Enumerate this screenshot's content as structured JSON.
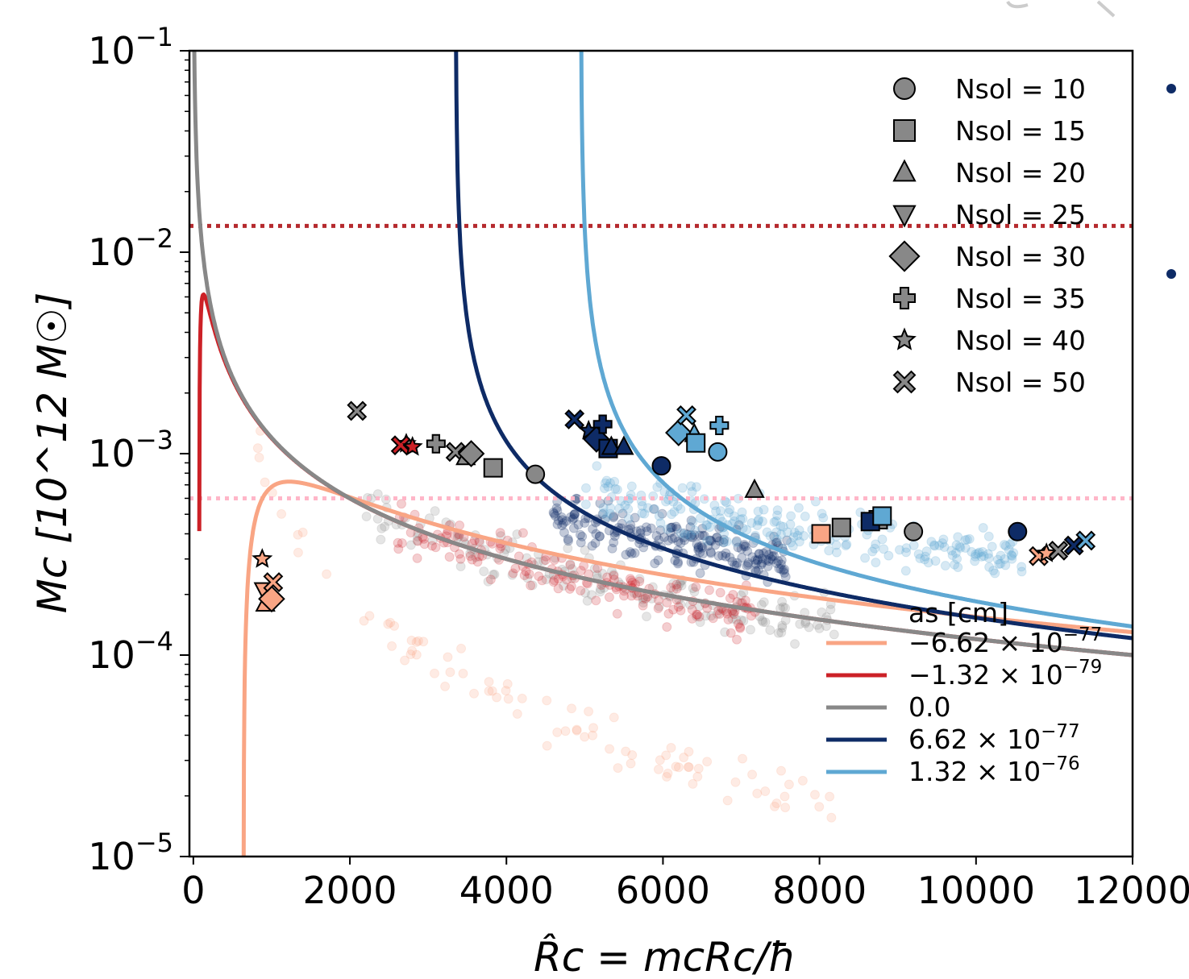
{
  "chart_data": {
    "type": "scatter",
    "x_axis": {
      "label": "R̂c = mcRc/ħ",
      "lim": [
        -50,
        12000
      ],
      "ticks": [
        0,
        2000,
        4000,
        6000,
        8000,
        10000,
        12000
      ],
      "tick_labels": [
        "0",
        "2000",
        "4000",
        "6000",
        "8000",
        "10000",
        "12000"
      ]
    },
    "y_axis": {
      "label": "Mc [10^12 M☉]",
      "scale": "log",
      "lim": [
        1e-05,
        0.1
      ],
      "ticks": [
        1e-05,
        0.0001,
        0.001,
        0.01,
        0.1
      ],
      "tick_labels": [
        {
          "base": "10",
          "exp": "−5"
        },
        {
          "base": "10",
          "exp": "−4"
        },
        {
          "base": "10",
          "exp": "−3"
        },
        {
          "base": "10",
          "exp": "−2"
        },
        {
          "base": "10",
          "exp": "−1"
        }
      ]
    },
    "hlines": [
      {
        "y": 0.0135,
        "color": "#b52a2e",
        "style": "dotted"
      },
      {
        "y": 0.0006,
        "color": "#ffb6c8",
        "style": "dotted"
      }
    ],
    "curves_legend_title": "as [cm]",
    "curves": [
      {
        "label_mantissa": "−6.62 × 10",
        "label_exp": "−77",
        "color": "#f9a584",
        "A": 1.2,
        "B": 0.5,
        "C": -0.00094
      },
      {
        "label_mantissa": "−1.32 × 10",
        "label_exp": "−79",
        "color": "#cc2127",
        "A": 1.2,
        "B": 0.5,
        "C": -1.88e-05
      },
      {
        "label_mantissa": "0.0",
        "label_exp": "",
        "color": "#888888",
        "A": 1.2,
        "B": 0.5,
        "C": 0
      },
      {
        "label_mantissa": "6.62 × 10",
        "label_exp": "−77",
        "color": "#0e2b66",
        "A": 1.2,
        "B": 0.5,
        "C": 0.00094
      },
      {
        "label_mantissa": "1.32 × 10",
        "label_exp": "−76",
        "color": "#5fa8d3",
        "A": 1.2,
        "B": 0.5,
        "C": 0.00187
      }
    ],
    "marker_legend": [
      {
        "label": "Nsol = 10",
        "marker": "circle"
      },
      {
        "label": "Nsol = 15",
        "marker": "square"
      },
      {
        "label": "Nsol = 20",
        "marker": "triangle-up"
      },
      {
        "label": "Nsol = 25",
        "marker": "triangle-down"
      },
      {
        "label": "Nsol = 30",
        "marker": "diamond"
      },
      {
        "label": "Nsol = 35",
        "marker": "plus"
      },
      {
        "label": "Nsol = 40",
        "marker": "star"
      },
      {
        "label": "Nsol = 50",
        "marker": "x"
      }
    ],
    "points": [
      {
        "x": 2090,
        "y": 0.00163,
        "m": "x",
        "c": "#888888"
      },
      {
        "x": 2720,
        "y": 0.00112,
        "m": "star",
        "c": "#888888"
      },
      {
        "x": 3100,
        "y": 0.00112,
        "m": "plus",
        "c": "#888888"
      },
      {
        "x": 3350,
        "y": 0.00102,
        "m": "x",
        "c": "#888888"
      },
      {
        "x": 3480,
        "y": 0.00096,
        "m": "triangle-up",
        "c": "#888888"
      },
      {
        "x": 3550,
        "y": 0.001,
        "m": "diamond",
        "c": "#888888"
      },
      {
        "x": 3830,
        "y": 0.00085,
        "m": "square",
        "c": "#888888"
      },
      {
        "x": 4370,
        "y": 0.00079,
        "m": "circle",
        "c": "#888888"
      },
      {
        "x": 7170,
        "y": 0.00066,
        "m": "triangle-up",
        "c": "#888888"
      },
      {
        "x": 8280,
        "y": 0.00043,
        "m": "square",
        "c": "#888888"
      },
      {
        "x": 8750,
        "y": 0.00047,
        "m": "square",
        "c": "#888888"
      },
      {
        "x": 9200,
        "y": 0.00041,
        "m": "circle",
        "c": "#888888"
      },
      {
        "x": 2650,
        "y": 0.0011,
        "m": "x",
        "c": "#cc2127"
      },
      {
        "x": 2800,
        "y": 0.00108,
        "m": "star",
        "c": "#cc2127"
      },
      {
        "x": 4870,
        "y": 0.00148,
        "m": "x",
        "c": "#0e2b66"
      },
      {
        "x": 5050,
        "y": 0.0013,
        "m": "star",
        "c": "#0e2b66"
      },
      {
        "x": 5150,
        "y": 0.00118,
        "m": "diamond",
        "c": "#0e2b66"
      },
      {
        "x": 5230,
        "y": 0.0014,
        "m": "plus",
        "c": "#0e2b66"
      },
      {
        "x": 5300,
        "y": 0.00106,
        "m": "square",
        "c": "#0e2b66"
      },
      {
        "x": 5340,
        "y": 0.00108,
        "m": "triangle-up",
        "c": "#0e2b66"
      },
      {
        "x": 5500,
        "y": 0.00108,
        "m": "triangle-up",
        "c": "#0e2b66"
      },
      {
        "x": 5980,
        "y": 0.00087,
        "m": "circle",
        "c": "#0e2b66"
      },
      {
        "x": 10530,
        "y": 0.00041,
        "m": "circle",
        "c": "#0e2b66"
      },
      {
        "x": 8650,
        "y": 0.00046,
        "m": "square",
        "c": "#0e2b66"
      },
      {
        "x": 6200,
        "y": 0.00127,
        "m": "diamond",
        "c": "#5fa8d3"
      },
      {
        "x": 6300,
        "y": 0.00155,
        "m": "x",
        "c": "#5fa8d3"
      },
      {
        "x": 6400,
        "y": 0.00125,
        "m": "triangle-up",
        "c": "#5fa8d3"
      },
      {
        "x": 6420,
        "y": 0.00113,
        "m": "square",
        "c": "#5fa8d3"
      },
      {
        "x": 6720,
        "y": 0.00138,
        "m": "plus",
        "c": "#5fa8d3"
      },
      {
        "x": 6700,
        "y": 0.00102,
        "m": "circle",
        "c": "#5fa8d3"
      },
      {
        "x": 8800,
        "y": 0.00049,
        "m": "square",
        "c": "#5fa8d3"
      },
      {
        "x": 880,
        "y": 0.0003,
        "m": "star",
        "c": "#f9a584"
      },
      {
        "x": 900,
        "y": 0.00021,
        "m": "triangle-down",
        "c": "#f9a584"
      },
      {
        "x": 920,
        "y": 0.00018,
        "m": "triangle-up",
        "c": "#f9a584"
      },
      {
        "x": 1000,
        "y": 0.00019,
        "m": "diamond",
        "c": "#f9a584"
      },
      {
        "x": 1020,
        "y": 0.00023,
        "m": "x",
        "c": "#f9a584"
      },
      {
        "x": 8020,
        "y": 0.0004,
        "m": "square",
        "c": "#f9a584"
      },
      {
        "x": 10800,
        "y": 0.00031,
        "m": "x",
        "c": "#f9a584"
      },
      {
        "x": 10900,
        "y": 0.00032,
        "m": "star",
        "c": "#f9a584"
      },
      {
        "x": 11050,
        "y": 0.00033,
        "m": "x",
        "c": "#888888"
      },
      {
        "x": 11250,
        "y": 0.00035,
        "m": "x",
        "c": "#0e2b66"
      },
      {
        "x": 11400,
        "y": 0.00037,
        "m": "x",
        "c": "#5fa8d3"
      }
    ],
    "clouds": [
      {
        "color": "#888888",
        "xmin": 2200,
        "xmax": 8200,
        "n": 170,
        "alpha": 0.22
      },
      {
        "color": "#cc2127",
        "xmin": 2600,
        "xmax": 7200,
        "n": 170,
        "alpha": 0.22
      },
      {
        "color": "#0e2b66",
        "xmin": 4600,
        "xmax": 7600,
        "n": 220,
        "alpha": 0.25
      },
      {
        "color": "#5fa8d3",
        "xmin": 5000,
        "xmax": 10600,
        "n": 240,
        "alpha": 0.25
      },
      {
        "color": "#f9a584",
        "xmin": 800,
        "xmax": 8400,
        "n": 90,
        "alpha": 0.22
      }
    ]
  }
}
